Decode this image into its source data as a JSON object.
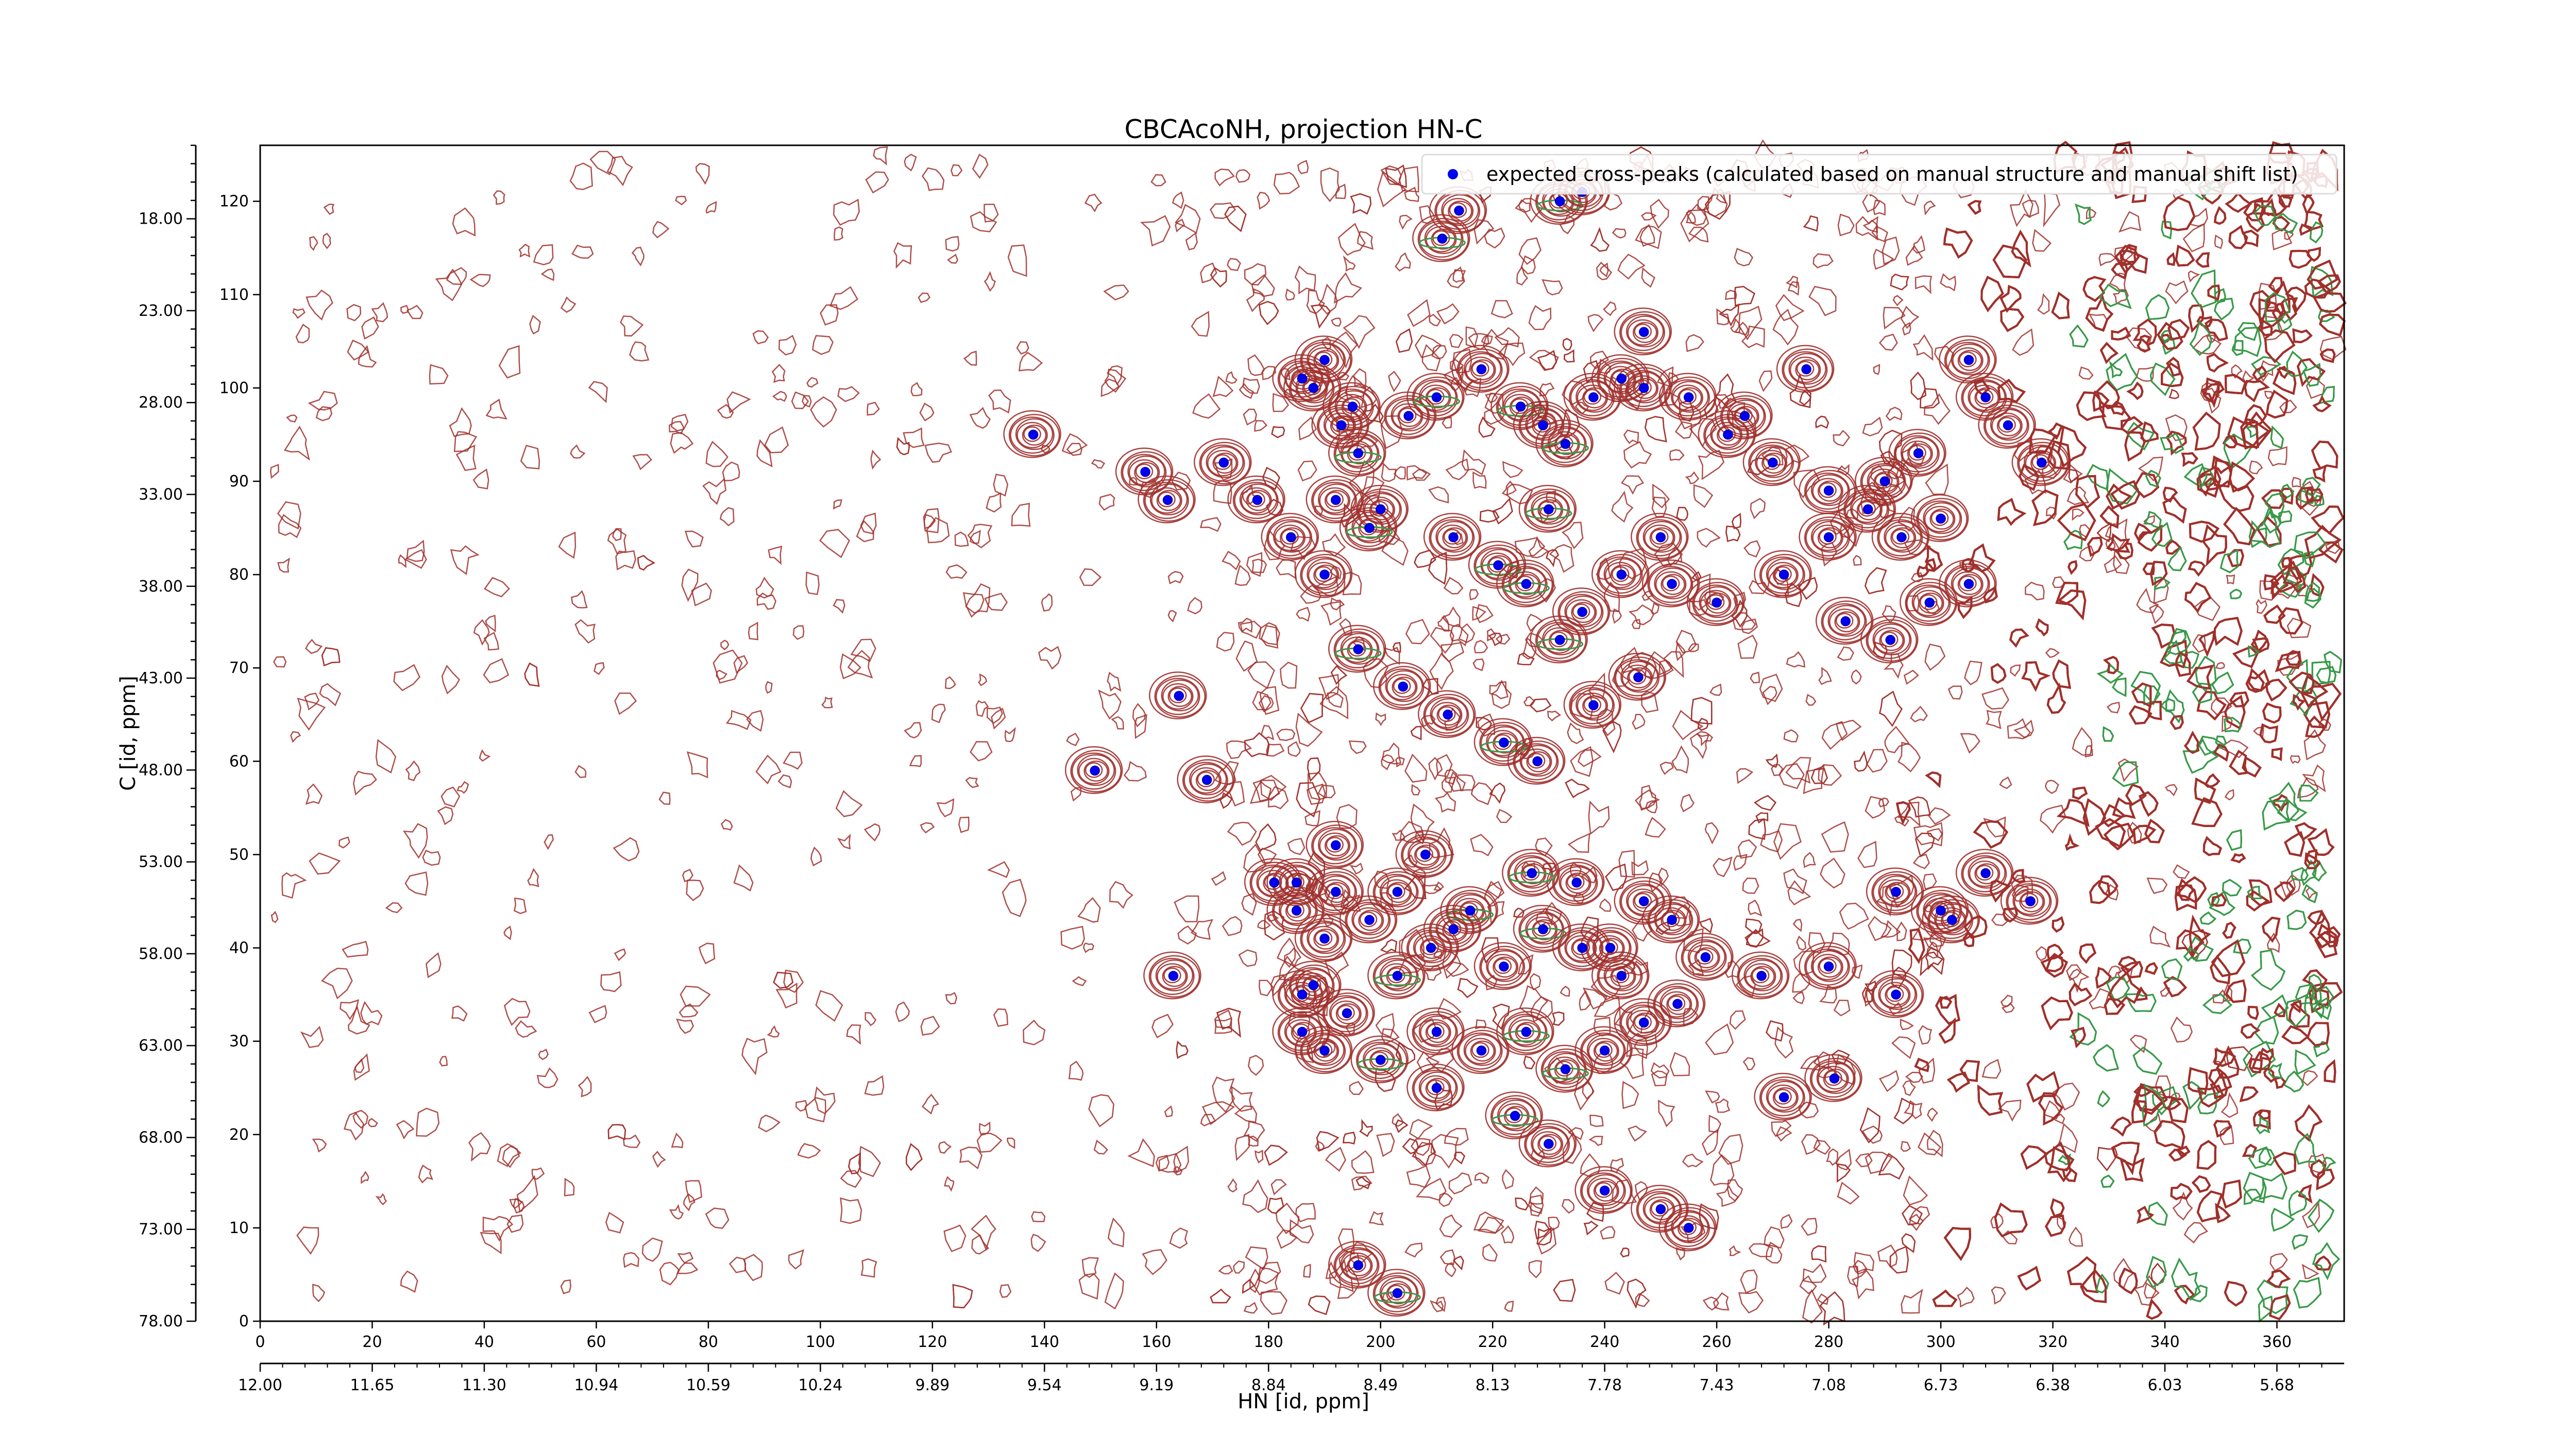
{
  "chart_data": {
    "type": "scatter",
    "title": "CBCAcoNH, projection HN-C",
    "xlabel": "HN [id, ppm]",
    "ylabel": "C [id, ppm]",
    "x_index_range": [
      0,
      372
    ],
    "y_index_range": [
      0,
      126
    ],
    "x_index_ticks": [
      "0",
      "20",
      "40",
      "60",
      "80",
      "100",
      "120",
      "140",
      "160",
      "180",
      "200",
      "220",
      "240",
      "260",
      "280",
      "300",
      "320",
      "340",
      "360"
    ],
    "x_ppm_ticks": [
      "12.00",
      "11.65",
      "11.30",
      "10.94",
      "10.59",
      "10.24",
      "9.89",
      "9.54",
      "9.19",
      "8.84",
      "8.49",
      "8.13",
      "7.78",
      "7.43",
      "7.08",
      "6.73",
      "6.38",
      "6.03",
      "5.68"
    ],
    "y_index_ticks": [
      "0",
      "10",
      "20",
      "30",
      "40",
      "50",
      "60",
      "70",
      "80",
      "90",
      "100",
      "110",
      "120"
    ],
    "y_ppm_ticks": [
      "78.00",
      "73.00",
      "68.00",
      "63.00",
      "58.00",
      "53.00",
      "48.00",
      "43.00",
      "38.00",
      "33.00",
      "28.00",
      "23.00",
      "18.00"
    ],
    "legend": {
      "placement": "top-right",
      "label": "expected cross-peaks (calculated based on manual structure and manual shift list)"
    },
    "colors": {
      "marker": "#0000ee",
      "positive_contour": "#a0302c",
      "negative_contour": "#3a9a4a"
    },
    "series": [
      {
        "name": "expected cross-peaks (calculated based on manual structure and manual shift list)",
        "points": [
          [
            138,
            95
          ],
          [
            163,
            37
          ],
          [
            149,
            59
          ],
          [
            181,
            47
          ],
          [
            169,
            58
          ],
          [
            192,
            51
          ],
          [
            214,
            119
          ],
          [
            211,
            116
          ],
          [
            232,
            120
          ],
          [
            236,
            121
          ],
          [
            247,
            106
          ],
          [
            265,
            97
          ],
          [
            276,
            102
          ],
          [
            305,
            103
          ],
          [
            296,
            93
          ],
          [
            318,
            92
          ],
          [
            186,
            101
          ],
          [
            188,
            100
          ],
          [
            193,
            96
          ],
          [
            196,
            93
          ],
          [
            190,
            103
          ],
          [
            195,
            98
          ],
          [
            205,
            97
          ],
          [
            210,
            99
          ],
          [
            218,
            102
          ],
          [
            225,
            98
          ],
          [
            229,
            96
          ],
          [
            233,
            94
          ],
          [
            238,
            99
          ],
          [
            243,
            101
          ],
          [
            247,
            100
          ],
          [
            255,
            99
          ],
          [
            262,
            95
          ],
          [
            270,
            92
          ],
          [
            280,
            89
          ],
          [
            290,
            90
          ],
          [
            300,
            86
          ],
          [
            308,
            99
          ],
          [
            312,
            96
          ],
          [
            184,
            84
          ],
          [
            178,
            88
          ],
          [
            172,
            92
          ],
          [
            200,
            87
          ],
          [
            213,
            84
          ],
          [
            221,
            81
          ],
          [
            226,
            79
          ],
          [
            232,
            73
          ],
          [
            236,
            76
          ],
          [
            243,
            80
          ],
          [
            252,
            79
          ],
          [
            260,
            77
          ],
          [
            272,
            80
          ],
          [
            283,
            75
          ],
          [
            291,
            73
          ],
          [
            298,
            77
          ],
          [
            305,
            79
          ],
          [
            190,
            80
          ],
          [
            196,
            72
          ],
          [
            204,
            68
          ],
          [
            212,
            65
          ],
          [
            222,
            62
          ],
          [
            228,
            60
          ],
          [
            238,
            66
          ],
          [
            246,
            69
          ],
          [
            164,
            67
          ],
          [
            158,
            91
          ],
          [
            162,
            88
          ],
          [
            192,
            88
          ],
          [
            198,
            85
          ],
          [
            230,
            87
          ],
          [
            250,
            84
          ],
          [
            280,
            84
          ],
          [
            287,
            87
          ],
          [
            293,
            84
          ],
          [
            185,
            44
          ],
          [
            190,
            41
          ],
          [
            198,
            43
          ],
          [
            203,
            46
          ],
          [
            209,
            40
          ],
          [
            216,
            44
          ],
          [
            222,
            38
          ],
          [
            229,
            42
          ],
          [
            235,
            47
          ],
          [
            241,
            40
          ],
          [
            247,
            45
          ],
          [
            252,
            43
          ],
          [
            258,
            39
          ],
          [
            268,
            37
          ],
          [
            280,
            38
          ],
          [
            292,
            35
          ],
          [
            302,
            43
          ],
          [
            186,
            35
          ],
          [
            194,
            33
          ],
          [
            203,
            37
          ],
          [
            210,
            31
          ],
          [
            218,
            29
          ],
          [
            226,
            31
          ],
          [
            233,
            27
          ],
          [
            240,
            29
          ],
          [
            247,
            32
          ],
          [
            253,
            34
          ],
          [
            186,
            31
          ],
          [
            190,
            29
          ],
          [
            200,
            28
          ],
          [
            210,
            25
          ],
          [
            224,
            22
          ],
          [
            230,
            19
          ],
          [
            240,
            14
          ],
          [
            250,
            12
          ],
          [
            255,
            10
          ],
          [
            292,
            46
          ],
          [
            300,
            44
          ],
          [
            308,
            48
          ],
          [
            316,
            45
          ],
          [
            196,
            6
          ],
          [
            203,
            3
          ],
          [
            272,
            24
          ],
          [
            281,
            26
          ],
          [
            185,
            47
          ],
          [
            192,
            46
          ],
          [
            188,
            36
          ],
          [
            208,
            50
          ],
          [
            213,
            42
          ],
          [
            227,
            48
          ],
          [
            236,
            40
          ],
          [
            243,
            37
          ]
        ]
      }
    ]
  }
}
